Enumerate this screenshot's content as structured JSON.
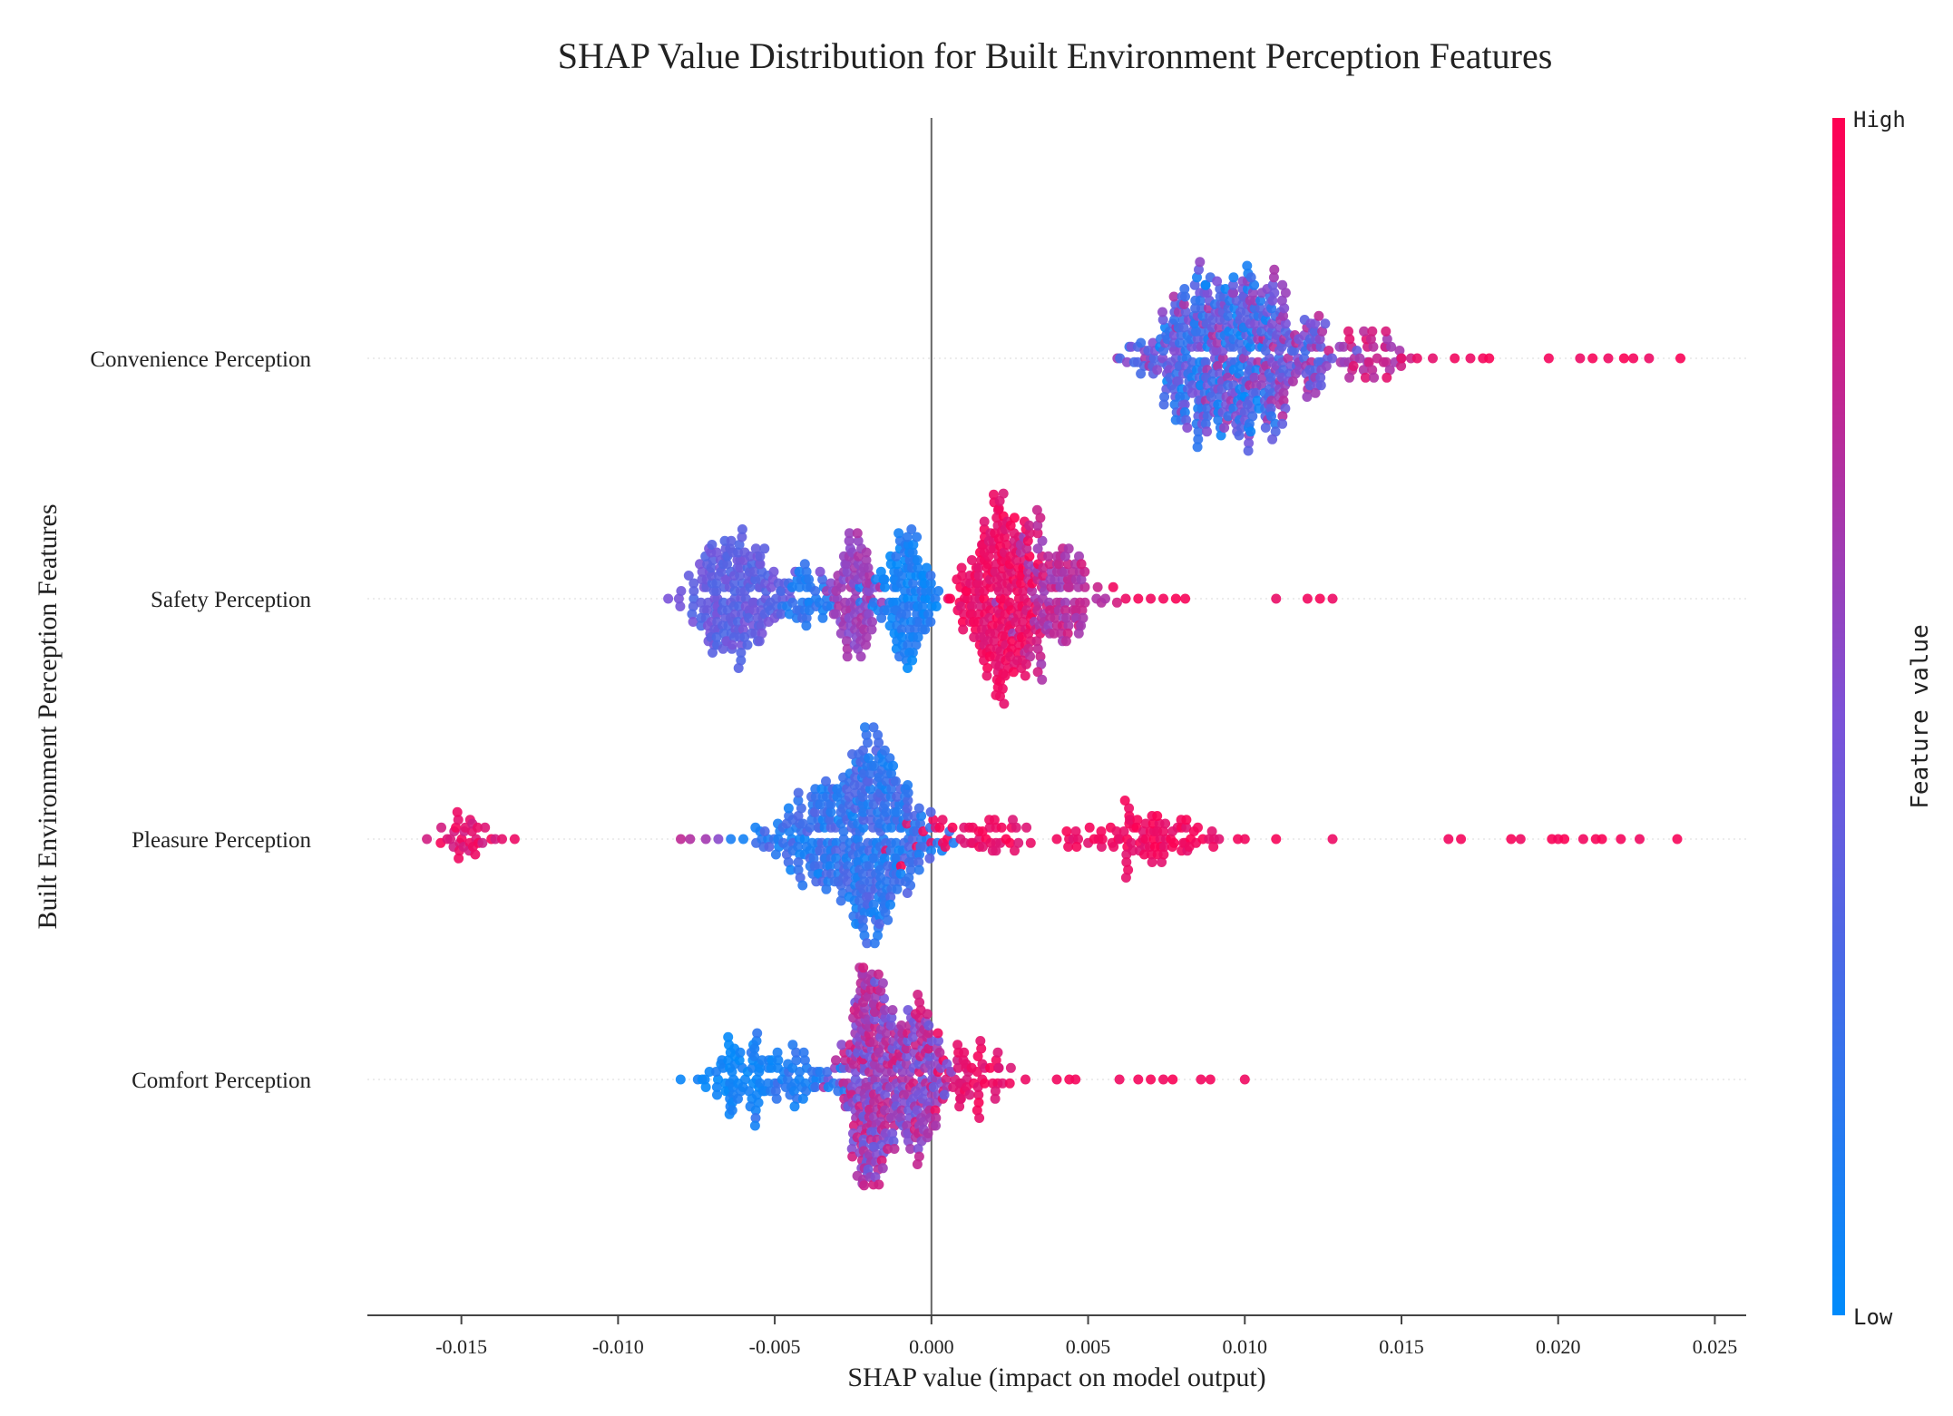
{
  "chart_data": {
    "type": "scatter",
    "subtype": "shap-beeswarm",
    "title": "SHAP Value Distribution for Built Environment Perception Features",
    "xlabel": "SHAP value (impact on model output)",
    "ylabel": "Built Environment Perception Features",
    "xlim": [
      -0.018,
      0.026
    ],
    "xticks": [
      -0.015,
      -0.01,
      -0.005,
      0.0,
      0.005,
      0.01,
      0.015,
      0.02,
      0.025
    ],
    "xtick_labels": [
      "-0.015",
      "-0.010",
      "-0.005",
      "0.000",
      "0.005",
      "0.010",
      "0.015",
      "0.020",
      "0.025"
    ],
    "zero_line": 0.0,
    "features": [
      {
        "name": "Convenience Perception",
        "clusters": [
          {
            "center": 0.0093,
            "spread": 0.0011,
            "count": 260,
            "low": 0.0,
            "high": 0.55
          },
          {
            "center": 0.008,
            "spread": 0.0008,
            "count": 80,
            "low": 0.15,
            "high": 0.7
          },
          {
            "center": 0.0112,
            "spread": 0.0009,
            "count": 150,
            "low": 0.3,
            "high": 0.75
          },
          {
            "center": 0.014,
            "spread": 0.0007,
            "count": 40,
            "low": 0.6,
            "high": 0.9
          }
        ],
        "tail": [
          {
            "x": 0.015,
            "v": 0.9
          },
          {
            "x": 0.0155,
            "v": 0.92
          },
          {
            "x": 0.016,
            "v": 0.9
          },
          {
            "x": 0.0167,
            "v": 0.95
          },
          {
            "x": 0.0172,
            "v": 0.93
          },
          {
            "x": 0.0178,
            "v": 0.98
          },
          {
            "x": 0.0176,
            "v": 0.96
          },
          {
            "x": 0.0197,
            "v": 0.96
          },
          {
            "x": 0.0207,
            "v": 0.93
          },
          {
            "x": 0.0211,
            "v": 0.97
          },
          {
            "x": 0.0216,
            "v": 0.94
          },
          {
            "x": 0.0221,
            "v": 0.99
          },
          {
            "x": 0.0224,
            "v": 0.96
          },
          {
            "x": 0.0229,
            "v": 0.93
          },
          {
            "x": 0.0239,
            "v": 0.98
          }
        ]
      },
      {
        "name": "Safety Perception",
        "clusters": [
          {
            "center": -0.0063,
            "spread": 0.0008,
            "count": 190,
            "low": 0.3,
            "high": 0.5
          },
          {
            "center": -0.004,
            "spread": 0.0005,
            "count": 40,
            "low": 0.05,
            "high": 0.3
          },
          {
            "center": -0.0025,
            "spread": 0.0004,
            "count": 90,
            "low": 0.5,
            "high": 0.7
          },
          {
            "center": -0.0007,
            "spread": 0.0005,
            "count": 120,
            "low": 0.0,
            "high": 0.2
          },
          {
            "center": 0.0022,
            "spread": 0.0006,
            "count": 230,
            "low": 0.85,
            "high": 1.0
          },
          {
            "center": 0.004,
            "spread": 0.0006,
            "count": 120,
            "low": 0.6,
            "high": 0.85
          }
        ],
        "tail": [
          {
            "x": 0.0058,
            "v": 0.95
          },
          {
            "x": 0.0062,
            "v": 0.93
          },
          {
            "x": 0.0066,
            "v": 0.97
          },
          {
            "x": 0.007,
            "v": 0.95
          },
          {
            "x": 0.0074,
            "v": 0.96
          },
          {
            "x": 0.0078,
            "v": 0.98
          },
          {
            "x": 0.0081,
            "v": 0.97
          },
          {
            "x": 0.011,
            "v": 0.92
          },
          {
            "x": 0.012,
            "v": 0.95
          },
          {
            "x": 0.0124,
            "v": 0.97
          },
          {
            "x": 0.0128,
            "v": 0.93
          }
        ]
      },
      {
        "name": "Pleasure Perception",
        "clusters": [
          {
            "center": -0.015,
            "spread": 0.0006,
            "count": 30,
            "low": 0.8,
            "high": 0.98
          },
          {
            "center": -0.0038,
            "spread": 0.0009,
            "count": 110,
            "low": 0.05,
            "high": 0.35
          },
          {
            "center": -0.0018,
            "spread": 0.0009,
            "count": 290,
            "low": 0.05,
            "high": 0.35
          },
          {
            "center": 0.0015,
            "spread": 0.0011,
            "count": 45,
            "low": 0.85,
            "high": 1.0
          },
          {
            "center": 0.0068,
            "spread": 0.0014,
            "count": 90,
            "low": 0.88,
            "high": 1.0
          }
        ],
        "tail": [
          {
            "x": -0.0161,
            "v": 0.82
          },
          {
            "x": -0.0137,
            "v": 0.9
          },
          {
            "x": -0.0133,
            "v": 0.93
          },
          {
            "x": -0.008,
            "v": 0.75
          },
          {
            "x": -0.0077,
            "v": 0.7
          },
          {
            "x": -0.0072,
            "v": 0.65
          },
          {
            "x": -0.0068,
            "v": 0.55
          },
          {
            "x": -0.0064,
            "v": 0.1
          },
          {
            "x": -0.006,
            "v": 0.08
          },
          {
            "x": 0.004,
            "v": 0.95
          },
          {
            "x": 0.0085,
            "v": 0.96
          },
          {
            "x": 0.009,
            "v": 0.94
          },
          {
            "x": 0.01,
            "v": 0.95
          },
          {
            "x": 0.011,
            "v": 0.97
          },
          {
            "x": 0.0128,
            "v": 0.93
          },
          {
            "x": 0.0165,
            "v": 0.95
          },
          {
            "x": 0.0169,
            "v": 0.96
          },
          {
            "x": 0.0185,
            "v": 0.97
          },
          {
            "x": 0.0188,
            "v": 0.94
          },
          {
            "x": 0.0198,
            "v": 0.98
          },
          {
            "x": 0.02,
            "v": 0.96
          },
          {
            "x": 0.0202,
            "v": 0.99
          },
          {
            "x": 0.0208,
            "v": 0.95
          },
          {
            "x": 0.0212,
            "v": 0.97
          },
          {
            "x": 0.0214,
            "v": 0.98
          },
          {
            "x": 0.022,
            "v": 0.96
          },
          {
            "x": 0.0226,
            "v": 0.94
          },
          {
            "x": 0.0238,
            "v": 0.97
          }
        ]
      },
      {
        "name": "Comfort Perception",
        "clusters": [
          {
            "center": -0.006,
            "spread": 0.0008,
            "count": 70,
            "low": 0.0,
            "high": 0.12
          },
          {
            "center": -0.0042,
            "spread": 0.0007,
            "count": 50,
            "low": 0.05,
            "high": 0.25
          },
          {
            "center": -0.002,
            "spread": 0.0005,
            "count": 210,
            "low": 0.4,
            "high": 0.85
          },
          {
            "center": -0.0005,
            "spread": 0.0005,
            "count": 150,
            "low": 0.4,
            "high": 0.85
          },
          {
            "center": 0.0012,
            "spread": 0.0007,
            "count": 55,
            "low": 0.85,
            "high": 1.0
          }
        ],
        "tail": [
          {
            "x": -0.0072,
            "v": 0.02
          },
          {
            "x": 0.0025,
            "v": 0.95
          },
          {
            "x": 0.003,
            "v": 0.93
          },
          {
            "x": 0.004,
            "v": 0.95
          },
          {
            "x": 0.0044,
            "v": 0.97
          },
          {
            "x": 0.0046,
            "v": 0.96
          },
          {
            "x": 0.006,
            "v": 0.94
          },
          {
            "x": 0.0066,
            "v": 0.96
          },
          {
            "x": 0.007,
            "v": 0.97
          },
          {
            "x": 0.0074,
            "v": 0.95
          },
          {
            "x": 0.0077,
            "v": 0.98
          },
          {
            "x": 0.0086,
            "v": 0.95
          },
          {
            "x": 0.0089,
            "v": 0.96
          },
          {
            "x": 0.01,
            "v": 0.94
          }
        ]
      }
    ],
    "colorbar": {
      "label": "Feature value",
      "high_label": "High",
      "low_label": "Low",
      "low_color": "#008bfb",
      "mid_color": "#7c52d8",
      "high_color": "#ff0052"
    }
  }
}
